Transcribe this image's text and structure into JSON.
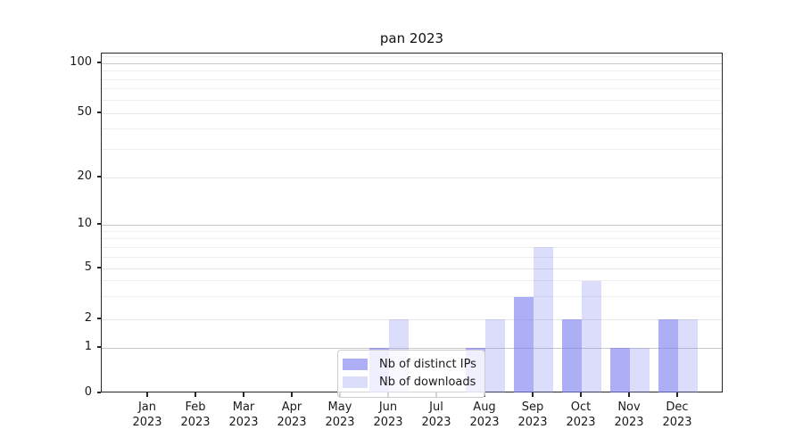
{
  "chart_data": {
    "type": "bar",
    "title": "pan 2023",
    "categories": [
      "Jan 2023",
      "Feb 2023",
      "Mar 2023",
      "Apr 2023",
      "May 2023",
      "Jun 2023",
      "Jul 2023",
      "Aug 2023",
      "Sep 2023",
      "Oct 2023",
      "Nov 2023",
      "Dec 2023"
    ],
    "series": [
      {
        "name": "Nb of distinct IPs",
        "fill": "rgba(124,124,240,0.62)",
        "values": [
          0,
          0,
          0,
          0,
          0,
          1,
          0,
          1,
          3,
          2,
          1,
          2
        ]
      },
      {
        "name": "Nb of downloads",
        "fill": "rgba(124,124,240,0.27)",
        "values": [
          0,
          0,
          0,
          0,
          0,
          2,
          0,
          2,
          7,
          4,
          1,
          2
        ]
      }
    ],
    "y_axis": {
      "scale": "symlog",
      "ticks": [
        0,
        1,
        2,
        5,
        10,
        20,
        50,
        100
      ],
      "tick_labels": [
        "0",
        "1",
        "2",
        "5",
        "10",
        "20",
        "50",
        "100"
      ],
      "minor_gridlines": [
        3,
        4,
        6,
        7,
        8,
        9,
        30,
        40,
        60,
        70,
        80,
        90,
        110
      ]
    },
    "legend": {
      "position": "lower-center-inside"
    },
    "grid": {
      "major_ticks_color": "#c9c9c9",
      "other_ticks_color": "#e7e7e7",
      "minor_color": "#eeeeee"
    }
  }
}
